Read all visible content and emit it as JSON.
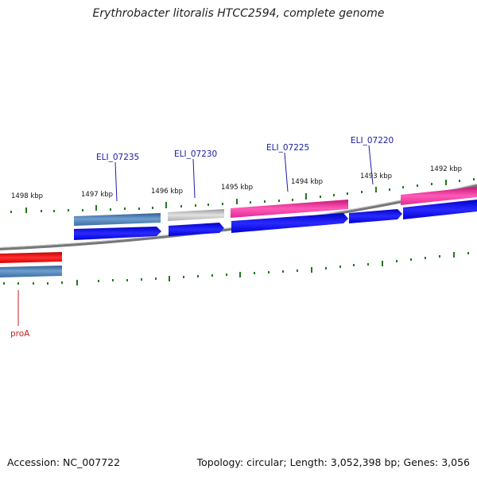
{
  "title": "Erythrobacter litoralis HTCC2594, complete genome",
  "accession": "Accession: NC_007722",
  "summary": "Topology: circular; Length: 3,052,398 bp; Genes: 3,056",
  "kbp_labels": [
    "1498 kbp",
    "1497 kbp",
    "1496 kbp",
    "1495 kbp",
    "1494 kbp",
    "1493 kbp",
    "1492 kbp"
  ],
  "gene_labels": {
    "eli07235": "ELI_07235",
    "eli07230": "ELI_07230",
    "eli07225": "ELI_07225",
    "eli07220": "ELI_07220",
    "proA": "proA"
  },
  "colors": {
    "blue_label": "#1a1aa8",
    "red_label": "#cc1f1f",
    "cds_blue": "#0a0aee",
    "steel_blue": "#4a7fb5",
    "gray": "#b8b8b8",
    "pink": "#ee2a9a",
    "red": "#e81010",
    "tick": "#1f7a1f",
    "backbone": "#7a7a7a"
  }
}
